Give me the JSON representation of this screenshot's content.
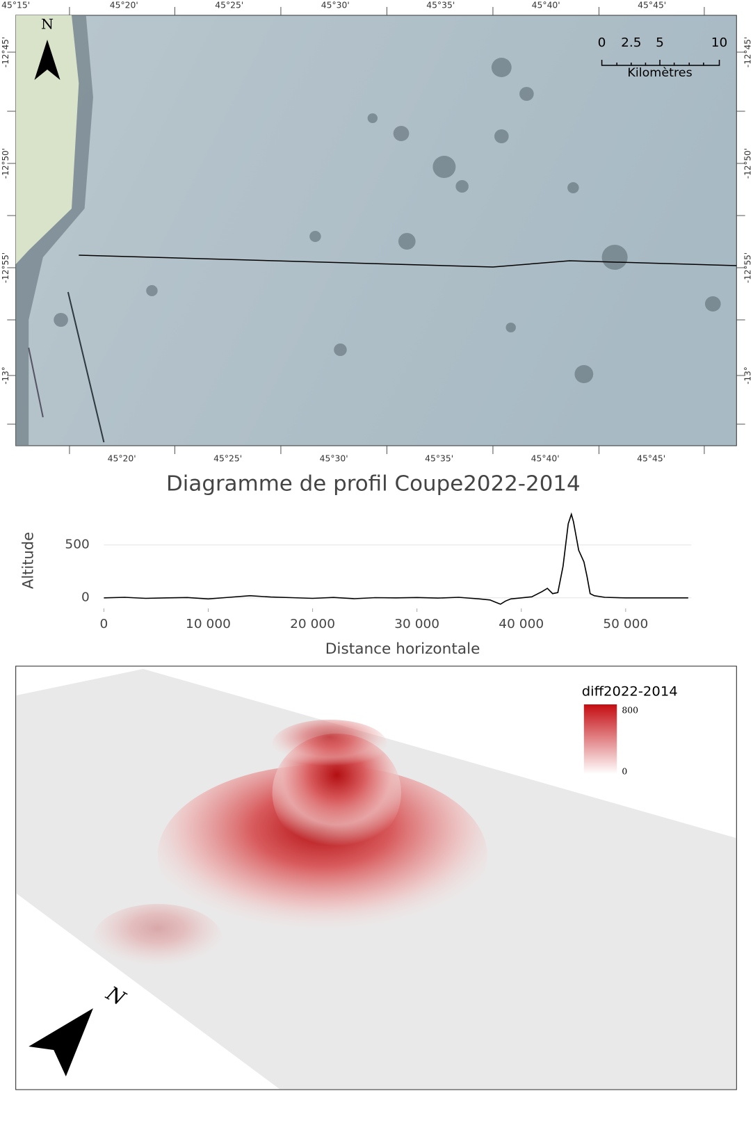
{
  "map": {
    "north": "N",
    "top_lon_labels": [
      "45°15'",
      "45°20'",
      "45°25'",
      "45°30'",
      "45°35'",
      "45°40'",
      "45°45'"
    ],
    "bottom_lon_labels": [
      "45°20'",
      "45°25'",
      "45°30'",
      "45°35'",
      "45°40'",
      "45°45'"
    ],
    "left_lat_labels": [
      "-12°45'",
      "-12°50'",
      "-12°55'",
      "-13°"
    ],
    "right_lat_labels": [
      "-12°45'",
      "-12°50'",
      "-12°55'",
      "-13°"
    ],
    "scale_labels": [
      "0",
      "2.5",
      "5",
      "10"
    ],
    "scale_unit": "Kilomètres"
  },
  "chart_data": {
    "type": "line",
    "title": "Diagramme de profil Coupe2022-2014",
    "y_label": "Altitude",
    "x_label": "Distance horizontale",
    "x": [
      0,
      2000,
      4000,
      6000,
      8000,
      10000,
      12000,
      14000,
      16000,
      18000,
      20000,
      22000,
      24000,
      26000,
      28000,
      30000,
      32000,
      34000,
      36000,
      37000,
      37500,
      38000,
      38500,
      39000,
      40000,
      41000,
      42000,
      42500,
      43000,
      43500,
      44000,
      44500,
      44800,
      45000,
      45500,
      46000,
      46300,
      46600,
      47000,
      48000,
      50000,
      52000,
      54000,
      56000
    ],
    "values": [
      0,
      5,
      -5,
      0,
      3,
      -10,
      5,
      20,
      8,
      2,
      -5,
      4,
      -8,
      2,
      0,
      3,
      -2,
      5,
      -10,
      -20,
      -40,
      -60,
      -30,
      -10,
      0,
      10,
      60,
      90,
      40,
      50,
      300,
      700,
      790,
      720,
      450,
      340,
      200,
      40,
      20,
      5,
      0,
      0,
      0,
      0
    ],
    "color": "#000000",
    "xlim": [
      0,
      56300
    ],
    "ylim": [
      -100,
      820
    ],
    "xticks": [
      0,
      {
        "value": 10000,
        "label": "10 000"
      },
      {
        "value": 20000,
        "label": "20 000"
      },
      {
        "value": 30000,
        "label": "30 000"
      },
      {
        "value": 40000,
        "label": "40 000"
      },
      {
        "value": 50000,
        "label": "50 000"
      }
    ],
    "yticks": [
      0,
      500
    ],
    "grid": true
  },
  "render3d": {
    "north": "N",
    "legend_title": "diff2022-2014",
    "legend_max": "800",
    "legend_min": "0"
  }
}
